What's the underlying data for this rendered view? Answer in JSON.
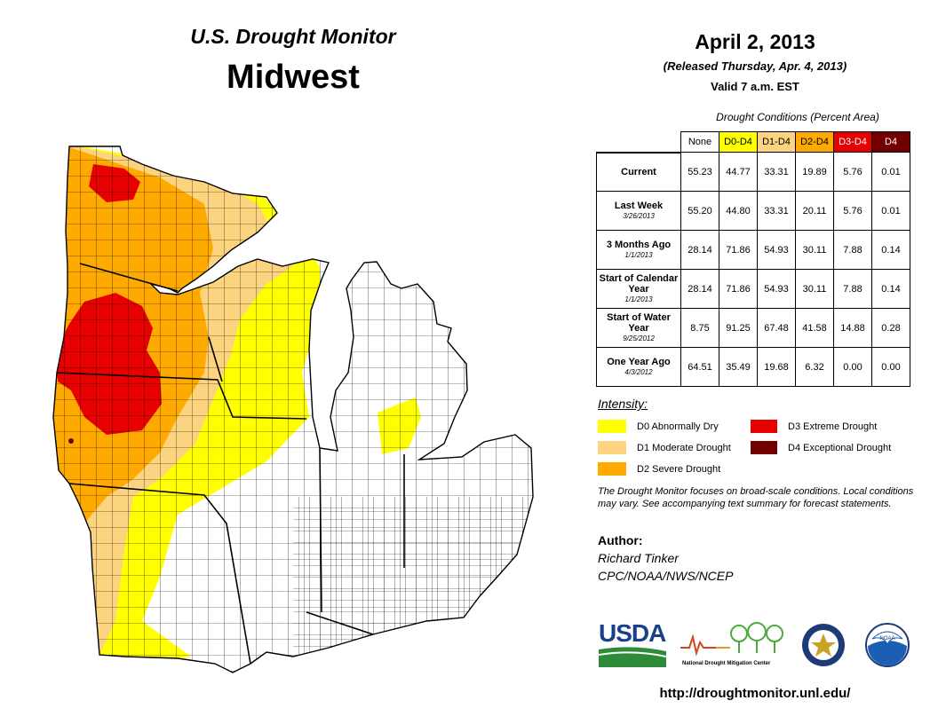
{
  "title": "U.S. Drought Monitor",
  "region": "Midwest",
  "date": "April 2, 2013",
  "released": "(Released Thursday, Apr. 4, 2013)",
  "valid": "Valid 7 a.m. EST",
  "table": {
    "caption": "Drought Conditions (Percent Area)",
    "headers": [
      "None",
      "D0-D4",
      "D1-D4",
      "D2-D4",
      "D3-D4",
      "D4"
    ],
    "rows": [
      {
        "label": "Current",
        "sub": "",
        "values": [
          "55.23",
          "44.77",
          "33.31",
          "19.89",
          "5.76",
          "0.01"
        ]
      },
      {
        "label": "Last Week",
        "sub": "3/26/2013",
        "values": [
          "55.20",
          "44.80",
          "33.31",
          "20.11",
          "5.76",
          "0.01"
        ]
      },
      {
        "label": "3 Months Ago",
        "sub": "1/1/2013",
        "values": [
          "28.14",
          "71.86",
          "54.93",
          "30.11",
          "7.88",
          "0.14"
        ]
      },
      {
        "label": "Start of Calendar Year",
        "sub": "1/1/2013",
        "values": [
          "28.14",
          "71.86",
          "54.93",
          "30.11",
          "7.88",
          "0.14"
        ]
      },
      {
        "label": "Start of Water Year",
        "sub": "9/25/2012",
        "values": [
          "8.75",
          "91.25",
          "67.48",
          "41.58",
          "14.88",
          "0.28"
        ]
      },
      {
        "label": "One Year Ago",
        "sub": "4/3/2012",
        "values": [
          "64.51",
          "35.49",
          "19.68",
          "6.32",
          "0.00",
          "0.00"
        ]
      }
    ]
  },
  "legend": {
    "title": "Intensity:",
    "items": [
      {
        "label": "D0 Abnormally Dry",
        "color": "#ffff00"
      },
      {
        "label": "D1 Moderate Drought",
        "color": "#fcd37f"
      },
      {
        "label": "D2 Severe Drought",
        "color": "#ffaa00"
      },
      {
        "label": "D3 Extreme Drought",
        "color": "#e60000"
      },
      {
        "label": "D4 Exceptional Drought",
        "color": "#730000"
      }
    ]
  },
  "note": "The Drought Monitor focuses on broad-scale conditions. Local conditions may vary. See accompanying text summary for forecast statements.",
  "author": {
    "heading": "Author:",
    "name": "Richard Tinker",
    "org": "CPC/NOAA/NWS/NCEP"
  },
  "logos": {
    "usda": "USDA",
    "ndmc": "National Drought Mitigation Center",
    "noaa": "NOAA"
  },
  "url": "http://droughtmonitor.unl.edu/"
}
